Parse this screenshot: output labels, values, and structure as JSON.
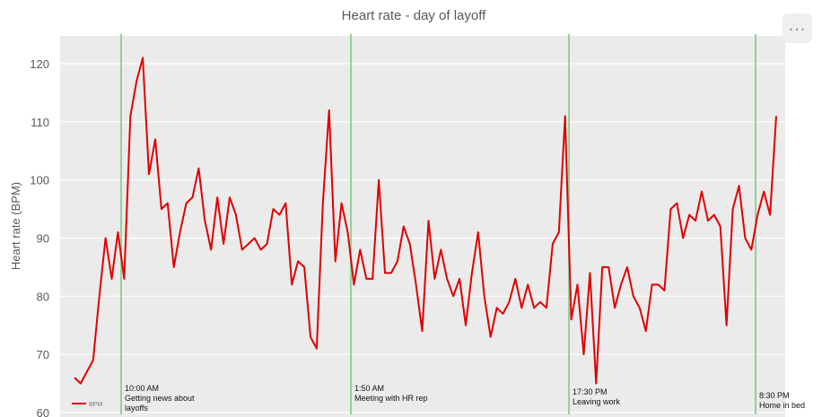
{
  "chart_data": {
    "type": "line",
    "title": "Heart rate - day of layoff",
    "ylabel": "Heart rate (BPM)",
    "xlabel": "",
    "ylim": [
      60,
      125
    ],
    "yticks": [
      60,
      70,
      80,
      90,
      100,
      110,
      120
    ],
    "grid": true,
    "legend_placement": "bottom-left",
    "series": [
      {
        "name": "BPM",
        "color": "#e00000",
        "values": [
          66,
          65,
          67,
          69,
          80,
          90,
          83,
          91,
          83,
          111,
          117,
          121,
          101,
          107,
          95,
          96,
          85,
          91,
          96,
          97,
          102,
          93,
          88,
          97,
          89,
          97,
          94,
          88,
          89,
          90,
          88,
          89,
          95,
          94,
          96,
          82,
          86,
          85,
          73,
          71,
          96,
          112,
          86,
          96,
          91,
          82,
          88,
          83,
          83,
          100,
          84,
          84,
          86,
          92,
          89,
          82,
          74,
          93,
          83,
          88,
          83,
          80,
          83,
          75,
          84,
          91,
          80,
          73,
          78,
          77,
          79,
          83,
          78,
          82,
          78,
          79,
          78,
          89,
          91,
          111,
          76,
          82,
          70,
          84,
          65,
          85,
          85,
          78,
          82,
          85,
          80,
          78,
          74,
          82,
          82,
          81,
          95,
          96,
          90,
          94,
          93,
          98,
          93,
          94,
          92,
          75,
          95,
          99,
          90,
          88,
          94,
          98,
          94,
          111
        ]
      }
    ],
    "annotations": [
      {
        "time": "10:00 AM",
        "label": "Getting news about layoffs"
      },
      {
        "time": "1:50 AM",
        "label": "Meeting with HR rep"
      },
      {
        "time": "17:30 PM",
        "label": "Leaving work"
      },
      {
        "time": "8:30 PM",
        "label": "Home in bed"
      }
    ],
    "annotation_color": "#8fd39a"
  },
  "toolbar": {
    "more_label": "..."
  }
}
